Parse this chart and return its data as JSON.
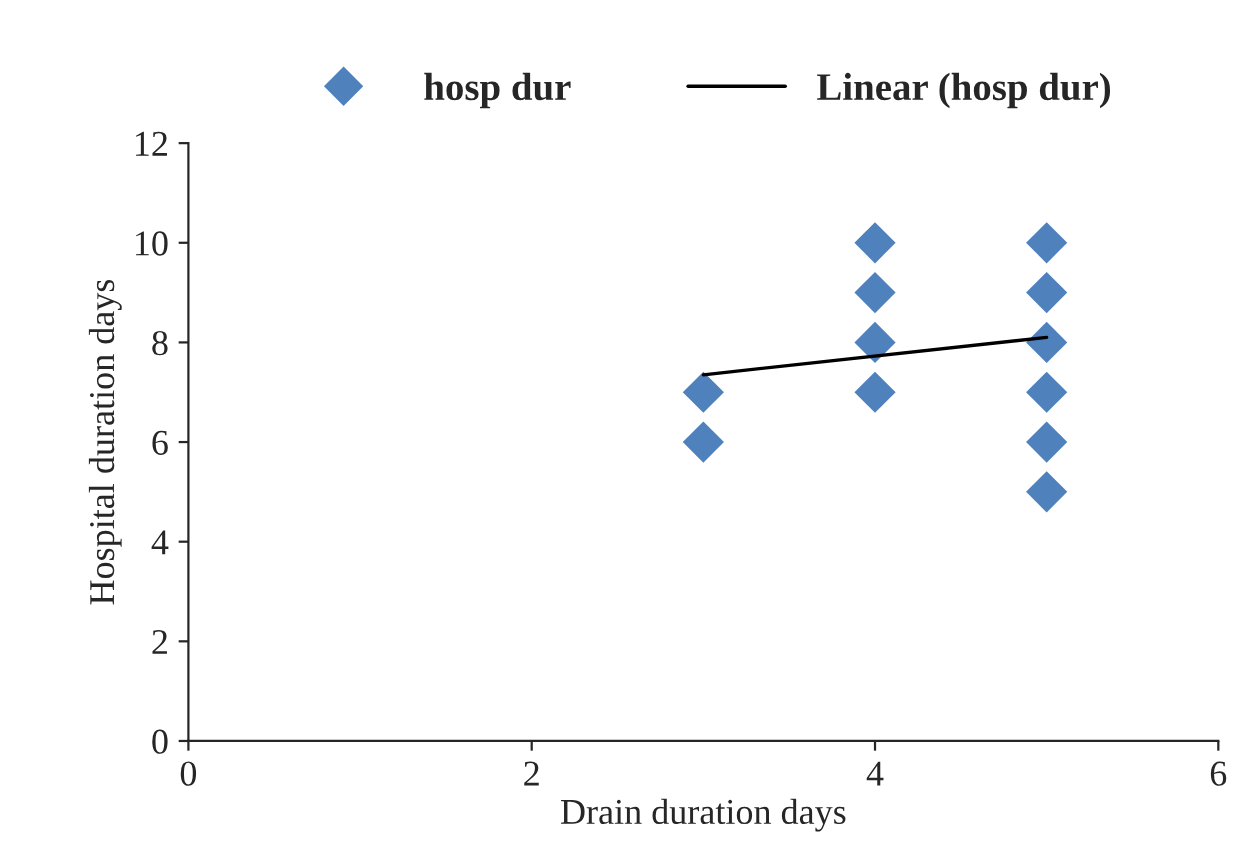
{
  "chart_data": {
    "type": "scatter",
    "xlabel": "Drain duration days",
    "ylabel": "Hospital duration days",
    "xlim": [
      0,
      6
    ],
    "xticks": [
      0,
      2,
      4,
      6
    ],
    "ylim": [
      0,
      12
    ],
    "yticks": [
      0,
      2,
      4,
      6,
      8,
      10,
      12
    ],
    "grid": false,
    "legend": "top",
    "series": [
      {
        "name": "hosp dur",
        "marker": "diamond",
        "color": "#4f81bd",
        "x": [
          3,
          3,
          4,
          4,
          4,
          4,
          5,
          5,
          5,
          5,
          5,
          5
        ],
        "values": [
          6,
          7,
          7,
          8,
          9,
          10,
          5,
          6,
          7,
          8,
          9,
          10
        ]
      },
      {
        "name": "Linear (hosp dur)",
        "type": "line",
        "marker": "none",
        "line_style": "solid",
        "color": "#000000",
        "x": [
          3,
          5
        ],
        "values": [
          7.35,
          8.1
        ]
      }
    ]
  }
}
